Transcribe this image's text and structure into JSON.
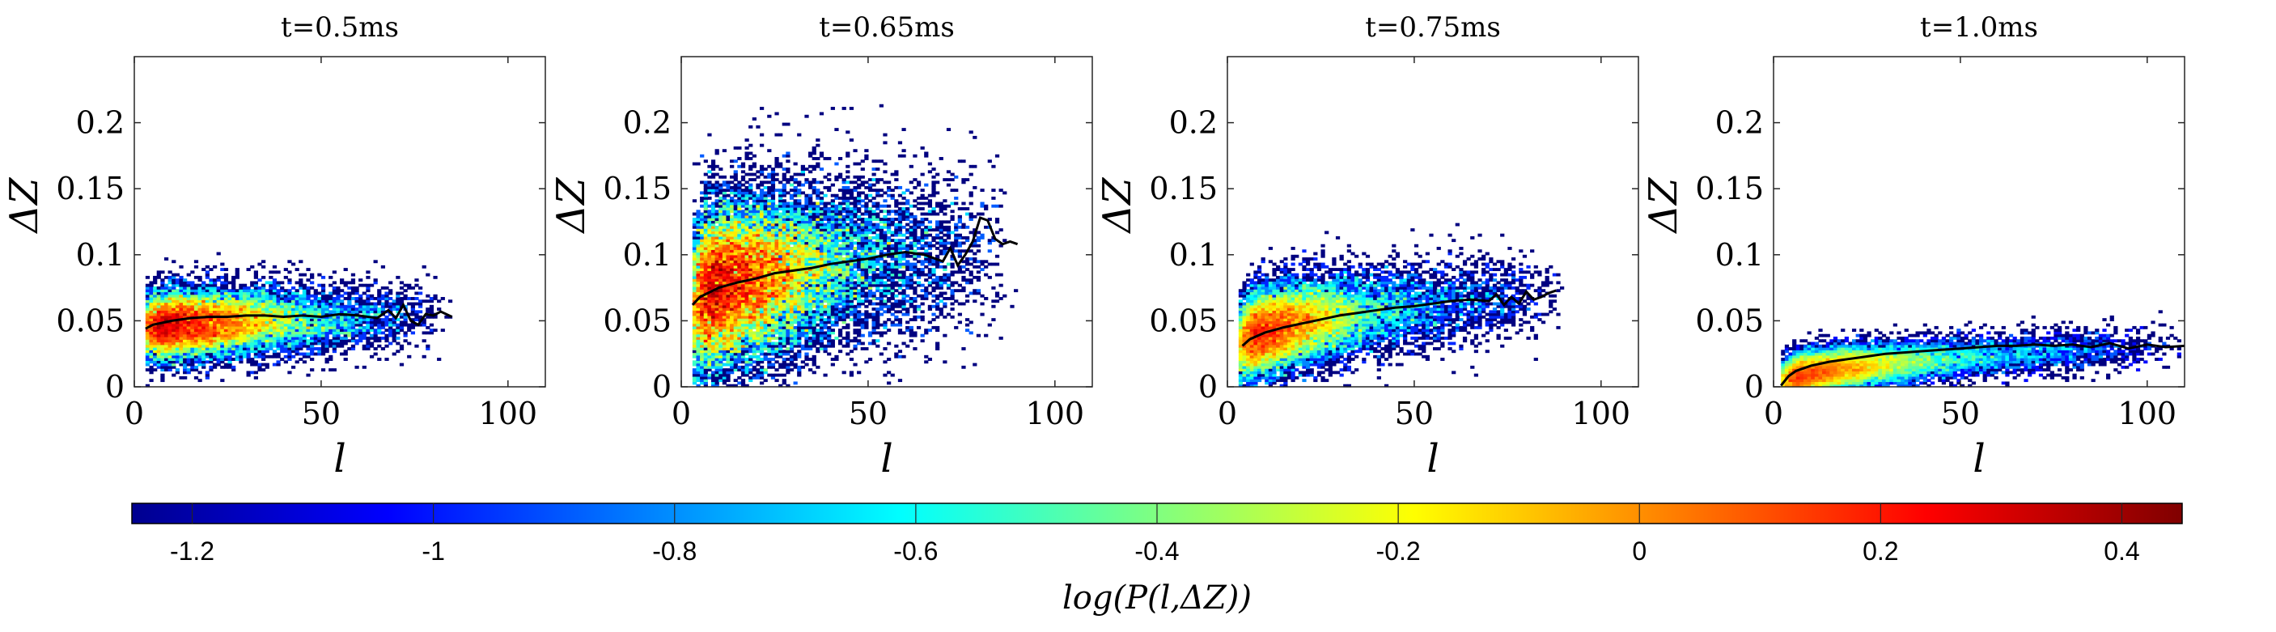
{
  "figure": {
    "colorbar": {
      "label": "log(P(l,ΔZ))",
      "range": [
        -1.25,
        0.45
      ],
      "ticks": [
        -1.2,
        -1,
        -0.8,
        -0.6,
        -0.4,
        -0.2,
        0,
        0.2,
        0.4
      ],
      "tick_labels": [
        "-1.2",
        "-1",
        "-0.8",
        "-0.6",
        "-0.4",
        "-0.2",
        "0",
        "0.2",
        "0.4"
      ],
      "colormap": "jet",
      "colors": [
        "#00008f",
        "#0000ff",
        "#0080ff",
        "#00ffff",
        "#80ff80",
        "#ffff00",
        "#ff8000",
        "#ff0000",
        "#800000"
      ]
    }
  },
  "chart_data": [
    {
      "type": "heatmap",
      "title": "t=0.5ms",
      "xlabel": "l",
      "ylabel": "ΔZ",
      "xlim": [
        0,
        110
      ],
      "ylim": [
        0,
        0.25
      ],
      "xticks": [
        0,
        50,
        100
      ],
      "yticks": [
        0,
        0.05,
        0.1,
        0.15,
        0.2
      ],
      "xtick_labels": [
        "0",
        "50",
        "100"
      ],
      "ytick_labels": [
        "0",
        "0.05",
        "0.1",
        "0.15",
        "0.2"
      ],
      "density": {
        "x_range": [
          3,
          85
        ],
        "peak_x": 18,
        "peak_y": 0.051,
        "y_mean_start": 0.044,
        "y_mean_end": 0.054,
        "spread_y": 0.011,
        "peak_value": 0.4,
        "points": 2600
      },
      "mean_curve": {
        "x": [
          3,
          5,
          10,
          15,
          20,
          25,
          30,
          35,
          40,
          45,
          50,
          55,
          60,
          65,
          68,
          70,
          72,
          74,
          76,
          78,
          80,
          82,
          85
        ],
        "y": [
          0.044,
          0.047,
          0.05,
          0.052,
          0.053,
          0.053,
          0.054,
          0.054,
          0.053,
          0.054,
          0.053,
          0.055,
          0.054,
          0.052,
          0.058,
          0.052,
          0.062,
          0.05,
          0.047,
          0.055,
          0.054,
          0.057,
          0.053
        ]
      }
    },
    {
      "type": "heatmap",
      "title": "t=0.65ms",
      "xlabel": "l",
      "ylabel": "ΔZ",
      "xlim": [
        0,
        110
      ],
      "ylim": [
        0,
        0.25
      ],
      "xticks": [
        0,
        50,
        100
      ],
      "yticks": [
        0,
        0.05,
        0.1,
        0.15,
        0.2
      ],
      "xtick_labels": [
        "0",
        "50",
        "100"
      ],
      "ytick_labels": [
        "0",
        "0.05",
        "0.1",
        "0.15",
        "0.2"
      ],
      "density": {
        "x_range": [
          3,
          90
        ],
        "peak_x": 18,
        "peak_y": 0.08,
        "y_mean_start": 0.062,
        "y_mean_end": 0.108,
        "spread_y": 0.028,
        "peak_value": 0.45,
        "points": 3200
      },
      "mean_curve": {
        "x": [
          3,
          5,
          10,
          15,
          20,
          25,
          30,
          35,
          40,
          45,
          50,
          55,
          60,
          65,
          68,
          70,
          72,
          74,
          76,
          78,
          80,
          82,
          84,
          86,
          88,
          90
        ],
        "y": [
          0.062,
          0.068,
          0.075,
          0.079,
          0.082,
          0.086,
          0.088,
          0.09,
          0.093,
          0.095,
          0.097,
          0.1,
          0.102,
          0.1,
          0.097,
          0.095,
          0.105,
          0.092,
          0.1,
          0.11,
          0.128,
          0.126,
          0.112,
          0.108,
          0.11,
          0.108
        ]
      }
    },
    {
      "type": "heatmap",
      "title": "t=0.75ms",
      "xlabel": "l",
      "ylabel": "ΔZ",
      "xlim": [
        0,
        110
      ],
      "ylim": [
        0,
        0.25
      ],
      "xticks": [
        0,
        50,
        100
      ],
      "yticks": [
        0,
        0.05,
        0.1,
        0.15,
        0.2
      ],
      "xtick_labels": [
        "0",
        "50",
        "100"
      ],
      "ytick_labels": [
        "0",
        "0.05",
        "0.1",
        "0.15",
        "0.2"
      ],
      "density": {
        "x_range": [
          3,
          90
        ],
        "peak_x": 15,
        "peak_y": 0.045,
        "y_mean_start": 0.03,
        "y_mean_end": 0.072,
        "spread_y": 0.014,
        "peak_value": 0.3,
        "points": 2800
      },
      "mean_curve": {
        "x": [
          4,
          6,
          10,
          15,
          20,
          25,
          30,
          35,
          40,
          45,
          50,
          55,
          60,
          65,
          70,
          72,
          74,
          76,
          78,
          80,
          82,
          84,
          86,
          88
        ],
        "y": [
          0.031,
          0.036,
          0.041,
          0.045,
          0.048,
          0.051,
          0.054,
          0.056,
          0.058,
          0.06,
          0.061,
          0.063,
          0.065,
          0.066,
          0.065,
          0.07,
          0.062,
          0.068,
          0.063,
          0.072,
          0.066,
          0.068,
          0.071,
          0.073
        ]
      }
    },
    {
      "type": "heatmap",
      "title": "t=1.0ms",
      "xlabel": "l",
      "ylabel": "ΔZ",
      "xlim": [
        0,
        110
      ],
      "ylim": [
        0,
        0.25
      ],
      "xticks": [
        0,
        50,
        100
      ],
      "yticks": [
        0,
        0.05,
        0.1,
        0.15,
        0.2
      ],
      "xtick_labels": [
        "0",
        "50",
        "100"
      ],
      "ytick_labels": [
        "0",
        "0.05",
        "0.1",
        "0.15",
        "0.2"
      ],
      "density": {
        "x_range": [
          2,
          110
        ],
        "peak_x": 15,
        "peak_y": 0.018,
        "y_mean_start": 0.002,
        "y_mean_end": 0.032,
        "spread_y": 0.007,
        "peak_value": 0.2,
        "points": 3000
      },
      "mean_curve": {
        "x": [
          2,
          4,
          6,
          10,
          15,
          20,
          25,
          30,
          35,
          40,
          45,
          50,
          55,
          60,
          65,
          70,
          75,
          80,
          85,
          90,
          95,
          100,
          105,
          110
        ],
        "y": [
          0.001,
          0.008,
          0.012,
          0.016,
          0.019,
          0.021,
          0.023,
          0.025,
          0.026,
          0.027,
          0.028,
          0.029,
          0.03,
          0.031,
          0.031,
          0.032,
          0.031,
          0.032,
          0.03,
          0.033,
          0.029,
          0.032,
          0.03,
          0.031
        ]
      }
    }
  ]
}
